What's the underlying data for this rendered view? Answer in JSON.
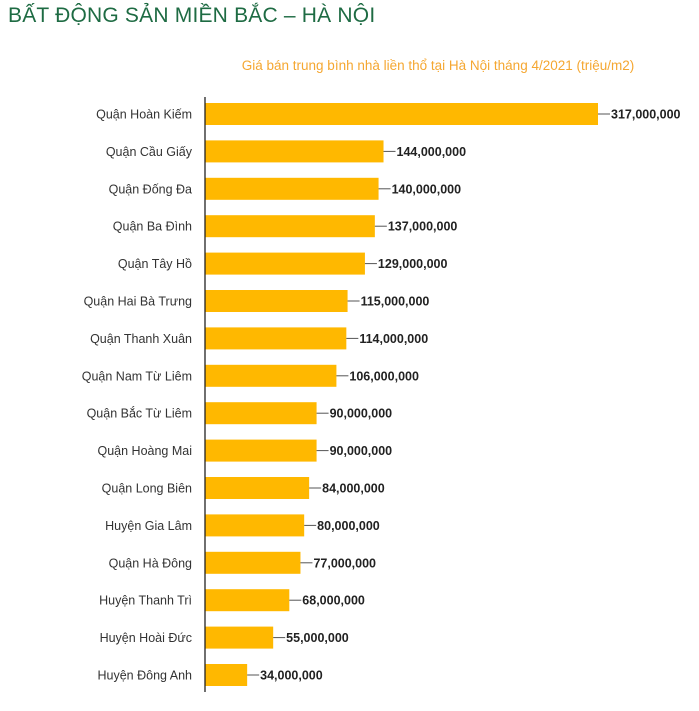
{
  "header": {
    "title": "BẤT ĐỘNG SẢN MIỀN BẮC – HÀ NỘI"
  },
  "chart_data": {
    "type": "bar",
    "orientation": "horizontal",
    "title": "Giá bán trung bình nhà liền thổ tại Hà Nội tháng 4/2021 (triệu/m2)",
    "categories": [
      "Quận Hoàn Kiếm",
      "Quận Cầu Giấy",
      "Quận Đống Đa",
      "Quận Ba Đình",
      "Quận Tây Hồ",
      "Quận Hai Bà Trưng",
      "Quận Thanh Xuân",
      "Quận Nam Từ Liêm",
      "Quận Bắc Từ Liêm",
      "Quận Hoàng Mai",
      "Quận Long Biên",
      "Huyện Gia Lâm",
      "Quận Hà Đông",
      "Huyện Thanh Trì",
      "Huyện Hoài Đức",
      "Huyện Đông Anh"
    ],
    "values": [
      317000000,
      144000000,
      140000000,
      137000000,
      129000000,
      115000000,
      114000000,
      106000000,
      90000000,
      90000000,
      84000000,
      80000000,
      77000000,
      68000000,
      55000000,
      34000000
    ],
    "labels": [
      "317,000,000",
      "144,000,000",
      "140,000,000",
      "137,000,000",
      "129,000,000",
      "115,000,000",
      "114,000,000",
      "106,000,000",
      "90,000,000",
      "90,000,000",
      "84,000,000",
      "80,000,000",
      "77,000,000",
      "68,000,000",
      "55,000,000",
      "34,000,000"
    ],
    "bar_color": "#ffb800",
    "xlim": [
      0,
      317000000
    ],
    "grid": false,
    "legend": "none"
  }
}
